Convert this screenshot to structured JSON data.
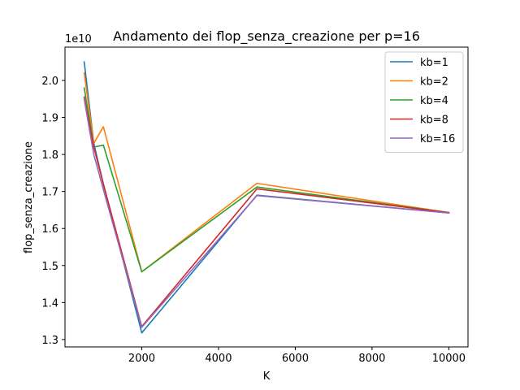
{
  "chart_data": {
    "type": "line",
    "title": "Andamento dei flop_senza_creazione per p=16",
    "xlabel": "K",
    "ylabel": "flop_senza_creazione",
    "y_offset_text": "1e10",
    "xlim": [
      0,
      10500
    ],
    "ylim": [
      1.28,
      2.09
    ],
    "x_ticks": [
      2000,
      4000,
      6000,
      8000,
      10000
    ],
    "x_tick_labels": [
      "2000",
      "4000",
      "6000",
      "8000",
      "10000"
    ],
    "y_ticks": [
      1.3,
      1.4,
      1.5,
      1.6,
      1.7,
      1.8,
      1.9,
      2.0
    ],
    "y_tick_labels": [
      "1.3",
      "1.4",
      "1.5",
      "1.6",
      "1.7",
      "1.8",
      "1.9",
      "2.0"
    ],
    "grid": false,
    "legend_position": "top-right",
    "x": [
      500,
      750,
      1000,
      2000,
      5000,
      10000
    ],
    "series": [
      {
        "name": "kb=1",
        "color": "#1f77b4",
        "values": [
          2.05,
          1.83,
          1.72,
          1.318,
          1.69,
          1.642
        ]
      },
      {
        "name": "kb=2",
        "color": "#ff7f0e",
        "values": [
          2.02,
          1.83,
          1.875,
          1.483,
          1.722,
          1.643
        ]
      },
      {
        "name": "kb=4",
        "color": "#2ca02c",
        "values": [
          1.98,
          1.82,
          1.825,
          1.483,
          1.712,
          1.643
        ]
      },
      {
        "name": "kb=8",
        "color": "#d62728",
        "values": [
          1.955,
          1.82,
          1.72,
          1.335,
          1.707,
          1.643
        ]
      },
      {
        "name": "kb=16",
        "color": "#9467bd",
        "values": [
          1.95,
          1.8,
          1.705,
          1.333,
          1.689,
          1.642
        ]
      }
    ]
  }
}
